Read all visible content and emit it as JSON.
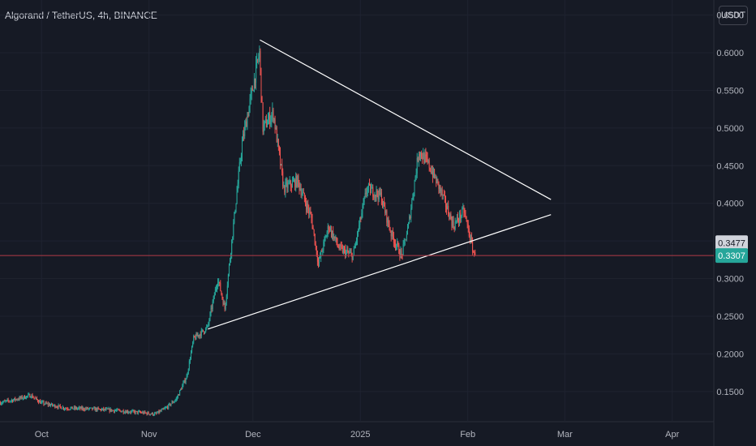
{
  "header": {
    "title": "Algorand / TetherUS, 4h, BINANCE",
    "currency_button": "USDT"
  },
  "colors": {
    "background": "#161a25",
    "grid": "#1f2330",
    "up_candle": "#26a69a",
    "down_candle": "#ef5350",
    "trendline": "#ffffff",
    "price_line": "#b23b47",
    "last_price_badge": "#26a69a",
    "marker_badge": "#d1d4dc"
  },
  "chart_data": {
    "type": "candlestick",
    "symbol": "Algorand / TetherUS",
    "interval": "4h",
    "exchange": "BINANCE",
    "quote_currency": "USDT",
    "grid": true,
    "y_axis_position": "right",
    "ylim": [
      0.11,
      0.67
    ],
    "y_ticks": [
      0.15,
      0.2,
      0.25,
      0.3,
      0.35,
      0.4,
      0.45,
      0.5,
      0.55,
      0.6,
      0.65
    ],
    "y_tick_labels": [
      "0.1500",
      "0.2000",
      "0.2500",
      "0.3000",
      "0.3500",
      "0.4000",
      "0.4500",
      "0.5000",
      "0.5500",
      "0.6000",
      "0.6500"
    ],
    "x_range": [
      "2024-09-19",
      "2025-04-13"
    ],
    "x_ticks": [
      {
        "label": "Oct",
        "date": "2024-10-01"
      },
      {
        "label": "Nov",
        "date": "2024-11-01"
      },
      {
        "label": "Dec",
        "date": "2024-12-01"
      },
      {
        "label": "2025",
        "date": "2025-01-01"
      },
      {
        "label": "Feb",
        "date": "2025-02-01"
      },
      {
        "label": "Mar",
        "date": "2025-03-01"
      },
      {
        "label": "Apr",
        "date": "2025-04-01"
      }
    ],
    "price_path": [
      {
        "date": "2024-09-19",
        "price": 0.135
      },
      {
        "date": "2024-09-24",
        "price": 0.14
      },
      {
        "date": "2024-09-28",
        "price": 0.145
      },
      {
        "date": "2024-10-01",
        "price": 0.135
      },
      {
        "date": "2024-10-08",
        "price": 0.128
      },
      {
        "date": "2024-10-15",
        "price": 0.127
      },
      {
        "date": "2024-10-22",
        "price": 0.125
      },
      {
        "date": "2024-10-30",
        "price": 0.122
      },
      {
        "date": "2024-11-03",
        "price": 0.12
      },
      {
        "date": "2024-11-06",
        "price": 0.128
      },
      {
        "date": "2024-11-09",
        "price": 0.14
      },
      {
        "date": "2024-11-12",
        "price": 0.17
      },
      {
        "date": "2024-11-14",
        "price": 0.22
      },
      {
        "date": "2024-11-18",
        "price": 0.235
      },
      {
        "date": "2024-11-21",
        "price": 0.3
      },
      {
        "date": "2024-11-23",
        "price": 0.26
      },
      {
        "date": "2024-11-25",
        "price": 0.35
      },
      {
        "date": "2024-11-28",
        "price": 0.48
      },
      {
        "date": "2024-12-03",
        "price": 0.6
      },
      {
        "date": "2024-12-04",
        "price": 0.5
      },
      {
        "date": "2024-12-07",
        "price": 0.52
      },
      {
        "date": "2024-12-10",
        "price": 0.42
      },
      {
        "date": "2024-12-14",
        "price": 0.43
      },
      {
        "date": "2024-12-18",
        "price": 0.38
      },
      {
        "date": "2024-12-20",
        "price": 0.32
      },
      {
        "date": "2024-12-23",
        "price": 0.37
      },
      {
        "date": "2024-12-26",
        "price": 0.34
      },
      {
        "date": "2024-12-30",
        "price": 0.33
      },
      {
        "date": "2025-01-03",
        "price": 0.42
      },
      {
        "date": "2025-01-07",
        "price": 0.41
      },
      {
        "date": "2025-01-10",
        "price": 0.36
      },
      {
        "date": "2025-01-13",
        "price": 0.33
      },
      {
        "date": "2025-01-15",
        "price": 0.37
      },
      {
        "date": "2025-01-18",
        "price": 0.47
      },
      {
        "date": "2025-01-21",
        "price": 0.45
      },
      {
        "date": "2025-01-24",
        "price": 0.42
      },
      {
        "date": "2025-01-28",
        "price": 0.37
      },
      {
        "date": "2025-01-31",
        "price": 0.39
      },
      {
        "date": "2025-02-02",
        "price": 0.35
      },
      {
        "date": "2025-02-03",
        "price": 0.331
      }
    ],
    "trendlines": [
      {
        "name": "descending resistance",
        "from": {
          "date": "2024-12-03",
          "price": 0.617
        },
        "to": {
          "date": "2025-02-25",
          "price": 0.405
        }
      },
      {
        "name": "ascending support",
        "from": {
          "date": "2024-11-18",
          "price": 0.233
        },
        "to": {
          "date": "2025-02-25",
          "price": 0.385
        }
      }
    ],
    "last_price": 0.3307,
    "last_price_label": "0.3307",
    "marker_price": 0.3477,
    "marker_label": "0.3477"
  }
}
